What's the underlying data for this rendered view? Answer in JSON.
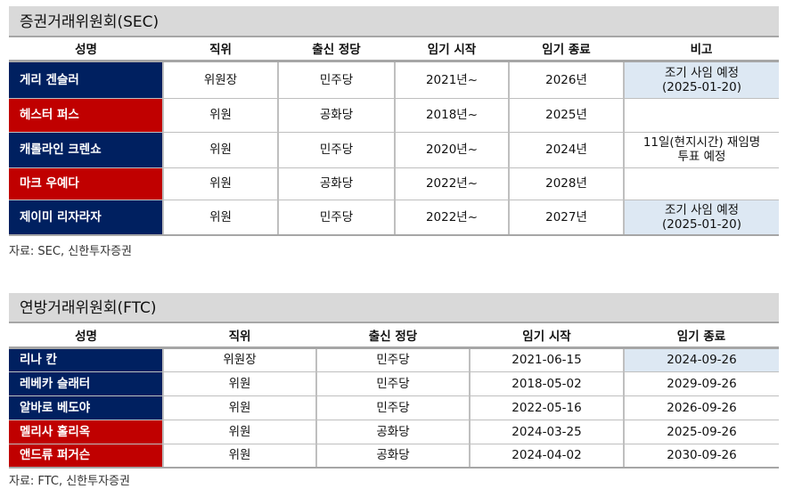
{
  "colors": {
    "democrat": "#002060",
    "republican": "#c00000",
    "note_bg": "#dde8f3",
    "title_bg": "#d9d9d9"
  },
  "sec": {
    "title": "증권거래위원회(SEC)",
    "headers": [
      "성명",
      "직위",
      "출신 정당",
      "임기 시작",
      "임기 종료",
      "비고"
    ],
    "rows": [
      {
        "name": "게리 겐슬러",
        "party_color": "blue",
        "position": "위원장",
        "party": "민주당",
        "start": "2021년~",
        "end": "2026년",
        "note_line1": "조기 사임 예정",
        "note_line2": "(2025-01-20)",
        "note_highlight": true
      },
      {
        "name": "헤스터 퍼스",
        "party_color": "red",
        "position": "위원",
        "party": "공화당",
        "start": "2018년~",
        "end": "2025년",
        "note_line1": "",
        "note_line2": "",
        "note_highlight": false
      },
      {
        "name": "캐롤라인 크렌쇼",
        "party_color": "blue",
        "position": "위원",
        "party": "민주당",
        "start": "2020년~",
        "end": "2024년",
        "note_line1": "11일(현지시간) 재임명",
        "note_line2": "투표 예정",
        "note_highlight": false
      },
      {
        "name": "마크 우예다",
        "party_color": "red",
        "position": "위원",
        "party": "공화당",
        "start": "2022년~",
        "end": "2028년",
        "note_line1": "",
        "note_line2": "",
        "note_highlight": false
      },
      {
        "name": "제이미 리자라자",
        "party_color": "blue",
        "position": "위원",
        "party": "민주당",
        "start": "2022년~",
        "end": "2027년",
        "note_line1": "조기 사임 예정",
        "note_line2": "(2025-01-20)",
        "note_highlight": true
      }
    ],
    "source": "자료: SEC, 신한투자증권"
  },
  "ftc": {
    "title": "연방거래위원회(FTC)",
    "headers": [
      "성명",
      "직위",
      "출신 정당",
      "임기 시작",
      "임기 종료"
    ],
    "rows": [
      {
        "name": "리나 칸",
        "party_color": "blue",
        "position": "위원장",
        "party": "민주당",
        "start": "2021-06-15",
        "end": "2024-09-26",
        "end_highlight": true
      },
      {
        "name": "레베카 슬래터",
        "party_color": "blue",
        "position": "위원",
        "party": "민주당",
        "start": "2018-05-02",
        "end": "2029-09-26",
        "end_highlight": false
      },
      {
        "name": "알바로 베도야",
        "party_color": "blue",
        "position": "위원",
        "party": "민주당",
        "start": "2022-05-16",
        "end": "2026-09-26",
        "end_highlight": false
      },
      {
        "name": "멜리사 홀리옥",
        "party_color": "red",
        "position": "위원",
        "party": "공화당",
        "start": "2024-03-25",
        "end": "2025-09-26",
        "end_highlight": false
      },
      {
        "name": "앤드류 퍼거슨",
        "party_color": "red",
        "position": "위원",
        "party": "공화당",
        "start": "2024-04-02",
        "end": "2030-09-26",
        "end_highlight": false
      }
    ],
    "source": "자료: FTC, 신한투자증권"
  }
}
